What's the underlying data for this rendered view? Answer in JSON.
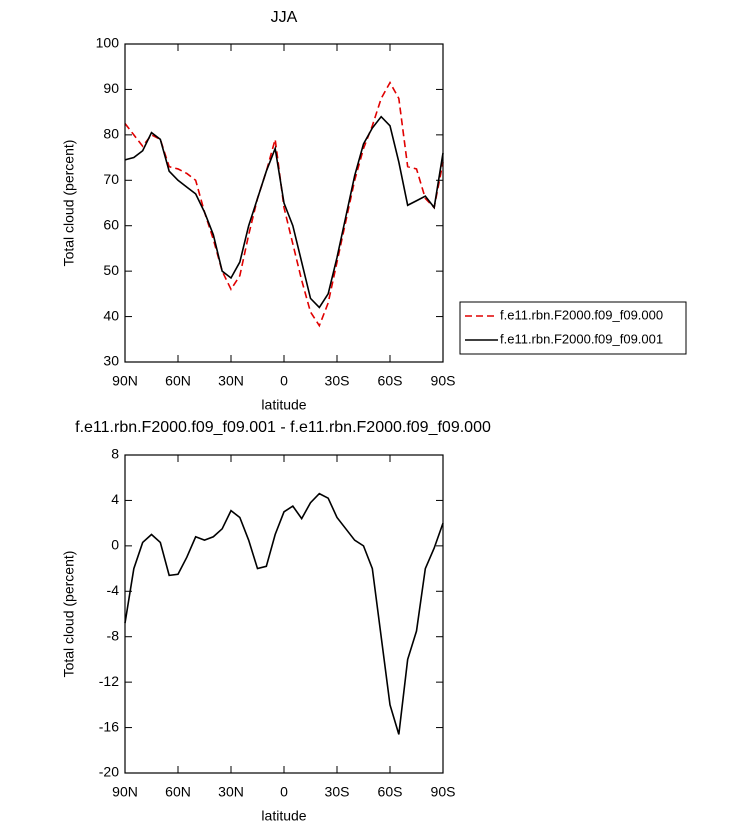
{
  "chart_data": [
    {
      "type": "line",
      "title": "JJA",
      "xlabel": "latitude",
      "ylabel": "Total cloud (percent)",
      "x": [
        90,
        85,
        80,
        75,
        70,
        65,
        60,
        55,
        50,
        45,
        40,
        35,
        30,
        25,
        20,
        15,
        10,
        5,
        0,
        -5,
        -10,
        -15,
        -20,
        -25,
        -30,
        -35,
        -40,
        -45,
        -50,
        -55,
        -60,
        -65,
        -70,
        -75,
        -80,
        -85,
        -90
      ],
      "series": [
        {
          "name": "f.e11.rbn.F2000.f09_f09.000",
          "color": "#e00000",
          "style": "dashed",
          "values": [
            82.5,
            80,
            77.5,
            80,
            79,
            73,
            72.5,
            71.5,
            70,
            63,
            57,
            50,
            46,
            49,
            58,
            66,
            72,
            79,
            64,
            56,
            48,
            41,
            38,
            43,
            52,
            61,
            70,
            77,
            82,
            88,
            91.5,
            88,
            73,
            72.5,
            66,
            64,
            74
          ]
        },
        {
          "name": "f.e11.rbn.F2000.f09_f09.001",
          "color": "#000000",
          "style": "solid",
          "values": [
            74.5,
            75,
            76.5,
            80.5,
            79,
            72,
            70,
            68.5,
            67,
            63,
            58,
            50,
            48.5,
            52,
            60,
            66,
            72,
            77,
            65,
            60,
            52,
            44,
            42,
            45,
            53,
            62,
            71,
            78,
            81.5,
            84,
            82,
            74,
            64.5,
            65.5,
            66.5,
            64,
            76
          ]
        }
      ],
      "xlim": [
        90,
        -90
      ],
      "xticks": [
        {
          "value": 90,
          "label": "90N"
        },
        {
          "value": 60,
          "label": "60N"
        },
        {
          "value": 30,
          "label": "30N"
        },
        0,
        {
          "value": -30,
          "label": "30S"
        },
        {
          "value": -60,
          "label": "60S"
        },
        {
          "value": -90,
          "label": "90S"
        }
      ],
      "ylim": [
        30,
        100
      ],
      "yticks": [
        30,
        40,
        50,
        60,
        70,
        80,
        90,
        100
      ],
      "legend": "right"
    },
    {
      "type": "line",
      "title": "f.e11.rbn.F2000.f09_f09.001 - f.e11.rbn.F2000.f09_f09.000",
      "xlabel": "latitude",
      "ylabel": "Total cloud (percent)",
      "x": [
        90,
        85,
        80,
        75,
        70,
        65,
        60,
        55,
        50,
        45,
        40,
        35,
        30,
        25,
        20,
        15,
        10,
        5,
        0,
        -5,
        -10,
        -15,
        -20,
        -25,
        -30,
        -35,
        -40,
        -45,
        -50,
        -55,
        -60,
        -65,
        -70,
        -75,
        -80,
        -85,
        -90
      ],
      "series": [
        {
          "color": "#000000",
          "style": "solid",
          "values": [
            -6.8,
            -2,
            0.3,
            1,
            0.3,
            -2.6,
            -2.5,
            -1,
            0.8,
            0.5,
            0.8,
            1.5,
            3.1,
            2.5,
            0.5,
            -2,
            -1.8,
            1,
            3,
            3.5,
            2.4,
            3.8,
            4.6,
            4.2,
            2.5,
            1.5,
            0.5,
            0,
            -2,
            -8,
            -14,
            -16.6,
            -10,
            -7.5,
            -2,
            -0.2,
            2
          ]
        }
      ],
      "xlim": [
        90,
        -90
      ],
      "xticks": [
        {
          "value": 90,
          "label": "90N"
        },
        {
          "value": 60,
          "label": "60N"
        },
        {
          "value": 30,
          "label": "30N"
        },
        0,
        {
          "value": -30,
          "label": "30S"
        },
        {
          "value": -60,
          "label": "60S"
        },
        {
          "value": -90,
          "label": "90S"
        }
      ],
      "ylim": [
        -20,
        8
      ],
      "yticks": [
        -20,
        -16,
        -12,
        -8,
        -4,
        0,
        4,
        8
      ]
    }
  ]
}
